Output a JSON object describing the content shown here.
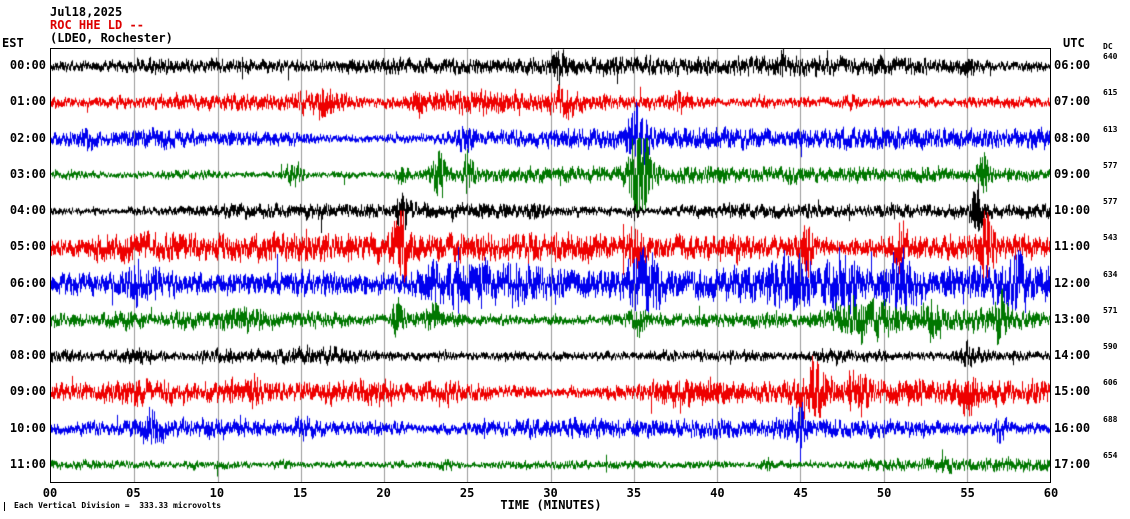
{
  "header": {
    "date": "Jul18,2025",
    "station": "ROC HHE LD --",
    "network": "(LDEO, Rochester)"
  },
  "axes": {
    "left_label": "EST",
    "right_label": "UTC",
    "dc_label": "DC",
    "x_ticks": [
      "00",
      "05",
      "10",
      "15",
      "20",
      "25",
      "30",
      "35",
      "40",
      "45",
      "50",
      "55",
      "60"
    ],
    "x_title": "TIME (MINUTES)",
    "x_min": 0,
    "x_max": 60,
    "x_step_minutes": 5
  },
  "footer": {
    "scale_note": "Each Vertical Division =  333.33 microvolts"
  },
  "colors": {
    "black": "#000000",
    "red": "#ee0000",
    "blue": "#0000ee",
    "green": "#007700",
    "grid": "#999999",
    "border": "#000000"
  },
  "chart_data": {
    "type": "line",
    "description": "Helicorder seismogram: 12 hourly traces of 60 minutes each, continuous ground-motion noise with transient events",
    "minutes_per_row": 60,
    "traces": [
      {
        "est": "00:00",
        "utc": "06:00",
        "dc": "640",
        "color": "#000000",
        "amp": 4.0,
        "events": [
          {
            "m": 30.5,
            "w": 0.3,
            "a": 1.2
          },
          {
            "m": 44,
            "w": 0.3,
            "a": 0.8
          },
          {
            "m": 55,
            "w": 0.4,
            "a": 0.7
          }
        ]
      },
      {
        "est": "01:00",
        "utc": "07:00",
        "dc": "615",
        "color": "#ee0000",
        "amp": 5.0,
        "events": [
          {
            "m": 16.5,
            "w": 1.2,
            "a": 1.2
          },
          {
            "m": 22,
            "w": 0.3,
            "a": 1.0
          },
          {
            "m": 31,
            "w": 0.8,
            "a": 1.0
          },
          {
            "m": 38,
            "w": 0.6,
            "a": 1.2
          },
          {
            "m": 48,
            "w": 0.5,
            "a": 1.5
          }
        ]
      },
      {
        "est": "02:00",
        "utc": "08:00",
        "dc": "613",
        "color": "#0000ee",
        "amp": 4.5,
        "events": [
          {
            "m": 2,
            "w": 0.8,
            "a": 0.8
          },
          {
            "m": 25,
            "w": 0.4,
            "a": 1.5
          },
          {
            "m": 35.2,
            "w": 0.5,
            "a": 2.5
          }
        ]
      },
      {
        "est": "03:00",
        "utc": "09:00",
        "dc": "577",
        "color": "#007700",
        "amp": 3.5,
        "events": [
          {
            "m": 14.6,
            "w": 0.5,
            "a": 3.0
          },
          {
            "m": 21,
            "w": 0.3,
            "a": 2.0
          },
          {
            "m": 23.3,
            "w": 0.4,
            "a": 3.0
          },
          {
            "m": 25,
            "w": 0.3,
            "a": 2.5
          },
          {
            "m": 35.3,
            "w": 0.6,
            "a": 7.0
          },
          {
            "m": 56,
            "w": 0.4,
            "a": 2.0
          }
        ]
      },
      {
        "est": "04:00",
        "utc": "10:00",
        "dc": "577",
        "color": "#000000",
        "amp": 3.2,
        "events": [
          {
            "m": 21,
            "w": 0.3,
            "a": 2.0
          },
          {
            "m": 29,
            "w": 0.3,
            "a": 1.0
          },
          {
            "m": 35,
            "w": 0.4,
            "a": 1.2
          },
          {
            "m": 55.6,
            "w": 0.3,
            "a": 5.0
          }
        ]
      },
      {
        "est": "05:00",
        "utc": "11:00",
        "dc": "543",
        "color": "#ee0000",
        "amp": 6.0,
        "events": [
          {
            "m": 21,
            "w": 0.4,
            "a": 2.5
          },
          {
            "m": 35,
            "w": 0.5,
            "a": 1.5
          },
          {
            "m": 45.3,
            "w": 0.4,
            "a": 2.5
          },
          {
            "m": 51,
            "w": 0.3,
            "a": 1.5
          },
          {
            "m": 56.2,
            "w": 0.4,
            "a": 3.0
          }
        ]
      },
      {
        "est": "06:00",
        "utc": "12:00",
        "dc": "634",
        "color": "#0000ee",
        "amp": 7.5,
        "events": [
          {
            "m": 5.5,
            "w": 2.5,
            "a": 1.2
          },
          {
            "m": 23,
            "w": 3.0,
            "a": 1.3
          },
          {
            "m": 35.5,
            "w": 0.8,
            "a": 1.6
          },
          {
            "m": 44.5,
            "w": 1.2,
            "a": 1.6
          },
          {
            "m": 47.5,
            "w": 0.8,
            "a": 1.4
          },
          {
            "m": 51,
            "w": 0.8,
            "a": 1.4
          },
          {
            "m": 58,
            "w": 0.6,
            "a": 1.0
          }
        ]
      },
      {
        "est": "07:00",
        "utc": "13:00",
        "dc": "571",
        "color": "#007700",
        "amp": 5.5,
        "events": [
          {
            "m": 20.8,
            "w": 0.4,
            "a": 2.0
          },
          {
            "m": 23,
            "w": 0.5,
            "a": 1.5
          },
          {
            "m": 35.4,
            "w": 0.5,
            "a": 1.5
          },
          {
            "m": 48.5,
            "w": 2.2,
            "a": 2.0
          },
          {
            "m": 53,
            "w": 0.6,
            "a": 1.5
          },
          {
            "m": 57,
            "w": 0.4,
            "a": 1.5
          }
        ]
      },
      {
        "est": "08:00",
        "utc": "14:00",
        "dc": "590",
        "color": "#000000",
        "amp": 5.5,
        "events": [
          {
            "m": 5,
            "w": 1.5,
            "a": 0.8
          },
          {
            "m": 47,
            "w": 1.0,
            "a": 0.8
          },
          {
            "m": 55,
            "w": 0.5,
            "a": 0.8
          }
        ]
      },
      {
        "est": "09:00",
        "utc": "15:00",
        "dc": "606",
        "color": "#ee0000",
        "amp": 6.0,
        "events": [
          {
            "m": 12,
            "w": 0.5,
            "a": 1.0
          },
          {
            "m": 23.5,
            "w": 0.8,
            "a": 1.0
          },
          {
            "m": 45.8,
            "w": 0.8,
            "a": 2.2
          },
          {
            "m": 48.5,
            "w": 0.6,
            "a": 1.8
          },
          {
            "m": 55,
            "w": 0.5,
            "a": 1.2
          }
        ]
      },
      {
        "est": "10:00",
        "utc": "16:00",
        "dc": "688",
        "color": "#0000ee",
        "amp": 4.2,
        "events": [
          {
            "m": 6,
            "w": 0.8,
            "a": 1.0
          },
          {
            "m": 15,
            "w": 0.5,
            "a": 1.0
          },
          {
            "m": 45,
            "w": 0.2,
            "a": 3.0
          },
          {
            "m": 57,
            "w": 0.4,
            "a": 1.0
          }
        ]
      },
      {
        "est": "11:00",
        "utc": "17:00",
        "dc": "654",
        "color": "#007700",
        "amp": 3.8,
        "events": [
          {
            "m": 14,
            "w": 0.4,
            "a": 1.0
          },
          {
            "m": 43,
            "w": 0.3,
            "a": 1.5
          }
        ]
      }
    ]
  }
}
